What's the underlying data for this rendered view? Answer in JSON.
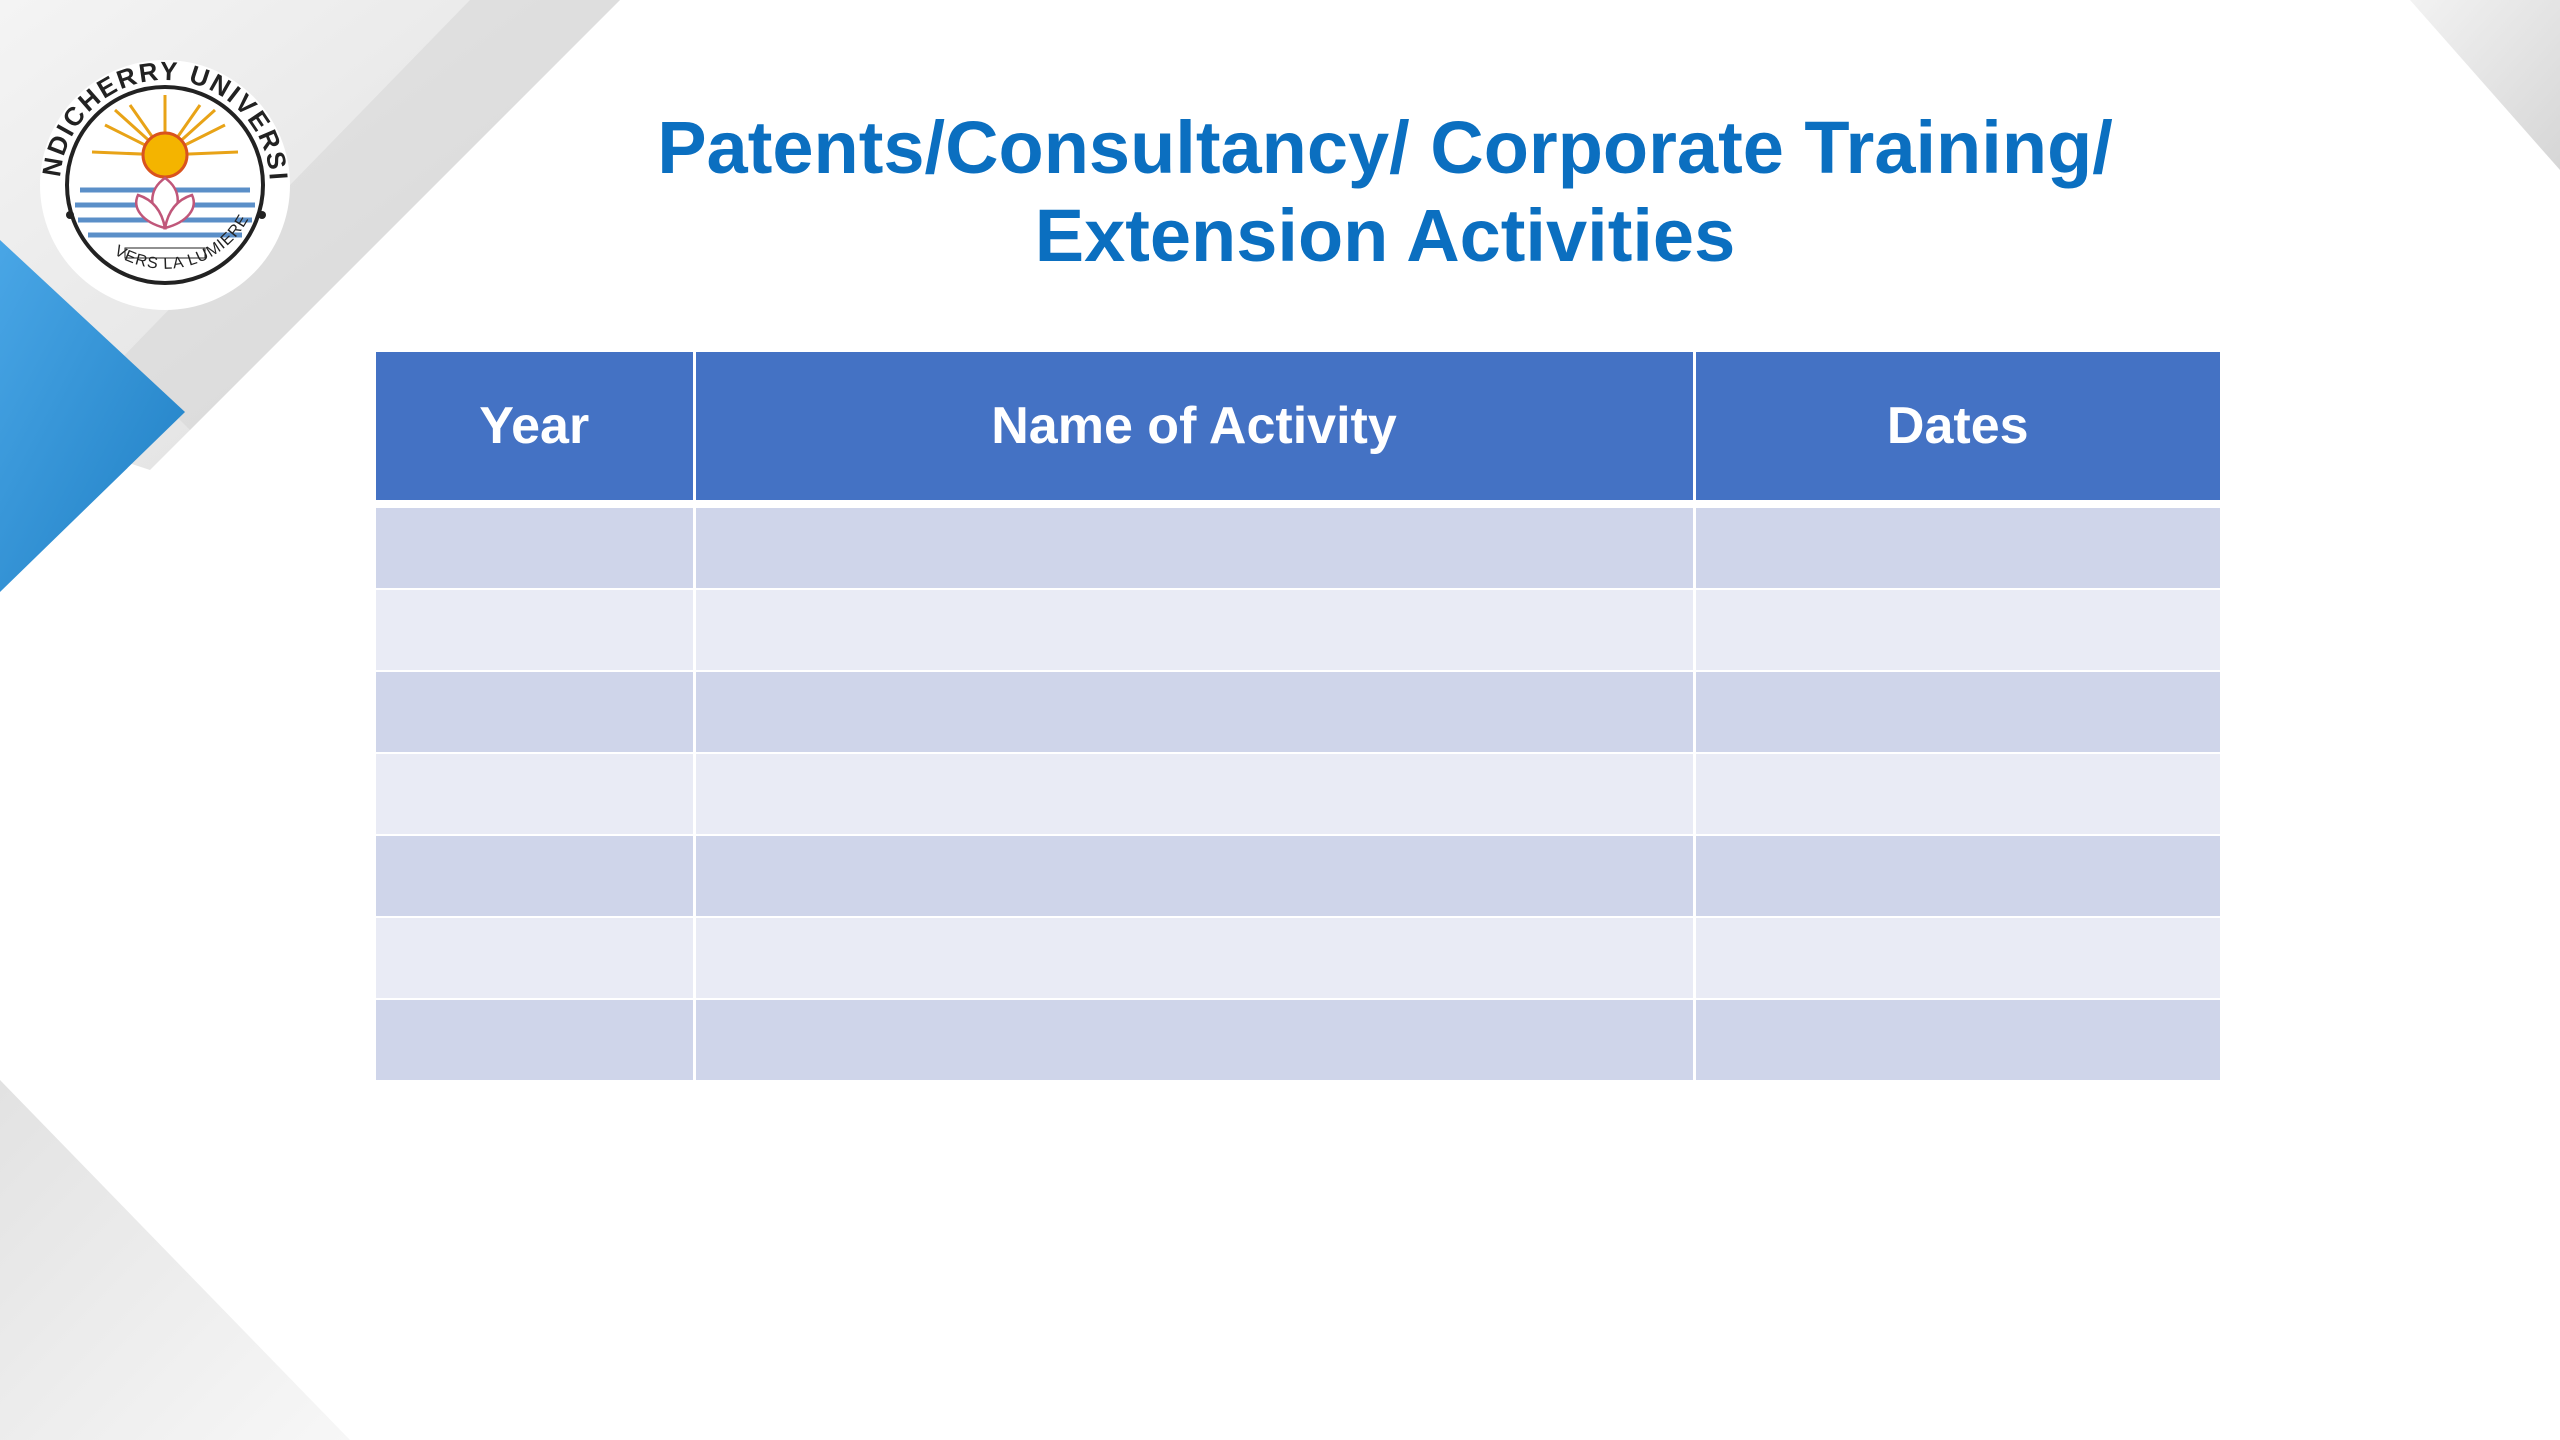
{
  "slide": {
    "title_line1": "Patents/Consultancy/ Corporate Training/",
    "title_line2": "Extension Activities",
    "title_color": "#0b6fc0"
  },
  "logo": {
    "name": "Pondicherry University seal",
    "ring_text_top": "PONDICHERRY UNIVERSITY",
    "ring_text_bottom": "VERS LA LUMIERE",
    "icon": "sun-and-lotus-emblem"
  },
  "table": {
    "header_color": "#4472c4",
    "row_color_odd": "#cfd5ea",
    "row_color_even": "#e9ebf5",
    "headers": [
      "Year",
      "Name of Activity",
      "Dates"
    ],
    "rows": [
      [
        "",
        "",
        ""
      ],
      [
        "",
        "",
        ""
      ],
      [
        "",
        "",
        ""
      ],
      [
        "",
        "",
        ""
      ],
      [
        "",
        "",
        ""
      ],
      [
        "",
        "",
        ""
      ],
      [
        "",
        "",
        ""
      ]
    ]
  },
  "decoration": {
    "accent_blue": "#3a97dc",
    "shade_grey": "#e6e6e6"
  }
}
